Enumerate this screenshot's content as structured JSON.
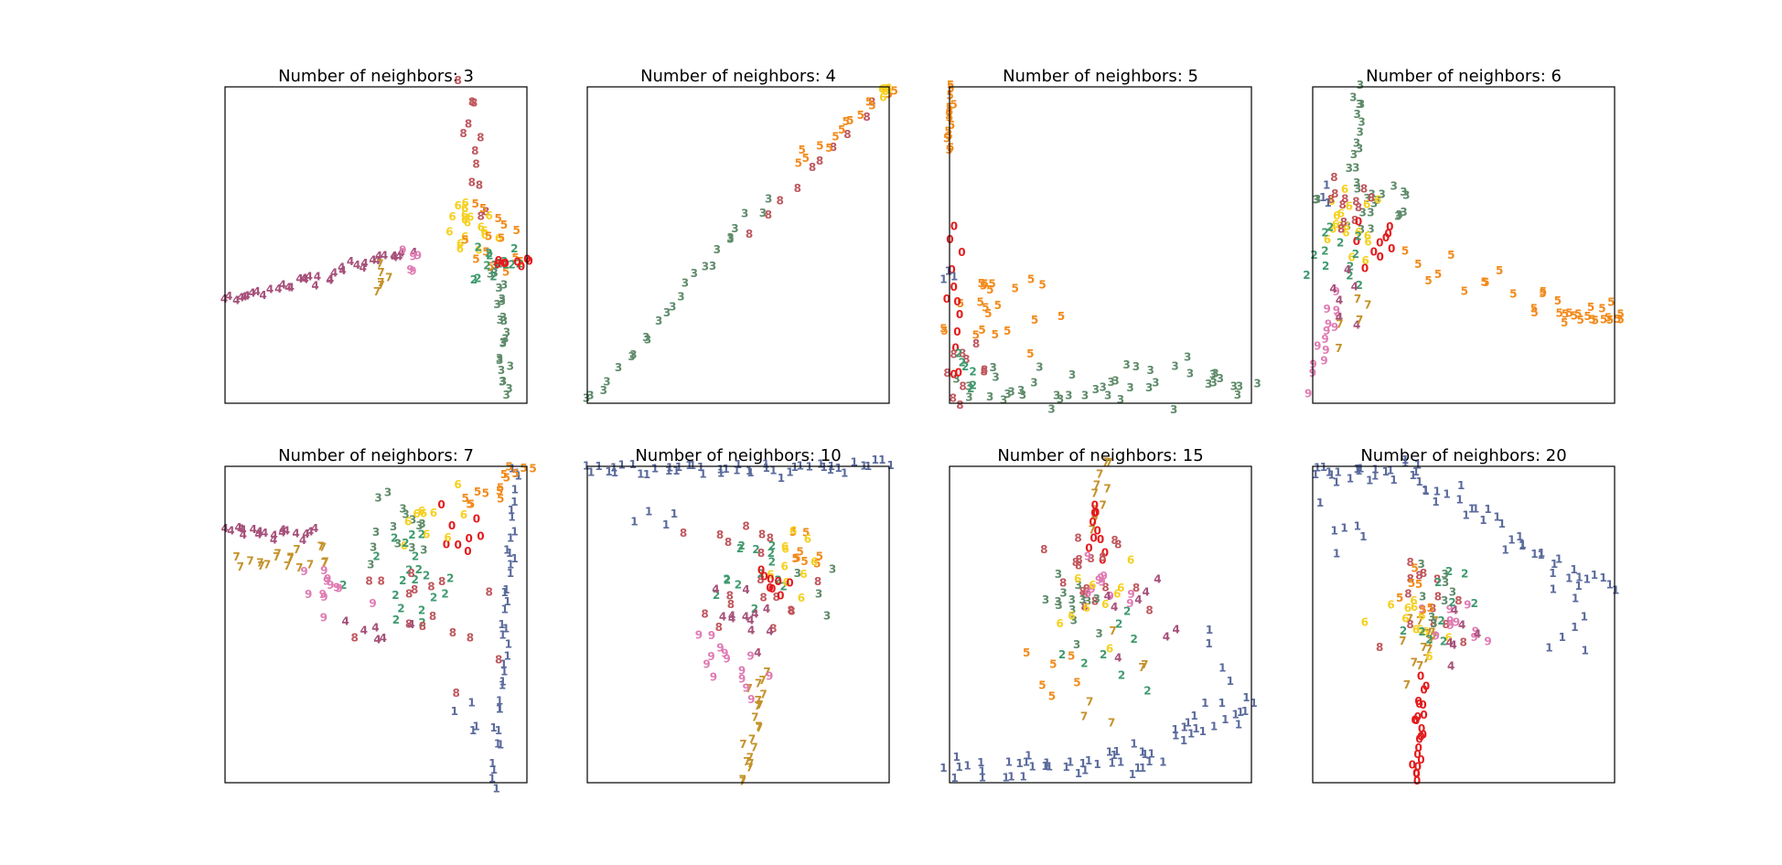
{
  "digit_colors": {
    "0": "#e41a1c",
    "1": "#5a6a9c",
    "2": "#3f9a6e",
    "3": "#5e8b6a",
    "4": "#a6507a",
    "5": "#f28a1a",
    "6": "#f5d020",
    "7": "#c4922a",
    "8": "#c0575d",
    "9": "#e07bb3"
  },
  "chart_data": [
    {
      "type": "scatter",
      "title": "Number of neighbors: 3",
      "marker": "digit-label",
      "xlim": [
        0,
        1
      ],
      "ylim": [
        0,
        1
      ],
      "axis_ticks": false,
      "grid": false,
      "clusters": [
        {
          "label": "4",
          "kind": "line",
          "from": [
            0.0,
            0.32
          ],
          "to": [
            0.62,
            0.48
          ],
          "n": 38,
          "spread": 0.01
        },
        {
          "label": "8",
          "kind": "line",
          "from": [
            0.79,
            1.0
          ],
          "to": [
            0.86,
            0.6
          ],
          "n": 12,
          "spread": 0.015
        },
        {
          "label": "3",
          "kind": "line",
          "from": [
            0.9,
            0.45
          ],
          "to": [
            0.93,
            0.02
          ],
          "n": 24,
          "spread": 0.012
        },
        {
          "label": "6",
          "kind": "blob",
          "center": [
            0.8,
            0.55
          ],
          "n": 18,
          "spread": 0.05
        },
        {
          "label": "5",
          "kind": "blob",
          "center": [
            0.9,
            0.5
          ],
          "n": 14,
          "spread": 0.06
        },
        {
          "label": "2",
          "kind": "blob",
          "center": [
            0.9,
            0.45
          ],
          "n": 14,
          "spread": 0.04
        },
        {
          "label": "0",
          "kind": "line",
          "from": [
            0.9,
            0.44
          ],
          "to": [
            1.0,
            0.44
          ],
          "n": 8,
          "spread": 0.01
        },
        {
          "label": "7",
          "kind": "blob",
          "center": [
            0.5,
            0.42
          ],
          "n": 6,
          "spread": 0.04
        },
        {
          "label": "9",
          "kind": "blob",
          "center": [
            0.6,
            0.45
          ],
          "n": 5,
          "spread": 0.03
        }
      ]
    },
    {
      "type": "scatter",
      "title": "Number of neighbors: 4",
      "marker": "digit-label",
      "xlim": [
        0,
        1
      ],
      "ylim": [
        0,
        1
      ],
      "axis_ticks": false,
      "grid": false,
      "clusters": [
        {
          "label": "3",
          "kind": "line",
          "from": [
            0.0,
            0.0
          ],
          "to": [
            0.6,
            0.65
          ],
          "n": 24,
          "spread": 0.015
        },
        {
          "label": "8",
          "kind": "line",
          "from": [
            0.55,
            0.55
          ],
          "to": [
            0.95,
            0.95
          ],
          "n": 10,
          "spread": 0.012
        },
        {
          "label": "5",
          "kind": "line",
          "from": [
            0.7,
            0.75
          ],
          "to": [
            1.0,
            1.0
          ],
          "n": 14,
          "spread": 0.01
        },
        {
          "label": "6",
          "kind": "blob",
          "center": [
            0.99,
            0.99
          ],
          "n": 6,
          "spread": 0.01
        }
      ]
    },
    {
      "type": "scatter",
      "title": "Number of neighbors: 5",
      "marker": "digit-label",
      "xlim": [
        0,
        1
      ],
      "ylim": [
        0,
        1
      ],
      "axis_ticks": false,
      "grid": false,
      "clusters": [
        {
          "label": "5",
          "kind": "line",
          "from": [
            0.0,
            1.0
          ],
          "to": [
            0.0,
            0.8
          ],
          "n": 14,
          "spread": 0.005
        },
        {
          "label": "5",
          "kind": "blob",
          "center": [
            0.12,
            0.3
          ],
          "n": 22,
          "spread": 0.09
        },
        {
          "label": "3",
          "kind": "line",
          "from": [
            0.05,
            0.05
          ],
          "to": [
            1.0,
            0.07
          ],
          "n": 44,
          "spread": 0.035
        },
        {
          "label": "0",
          "kind": "line",
          "from": [
            0.02,
            0.55
          ],
          "to": [
            0.03,
            0.1
          ],
          "n": 12,
          "spread": 0.02
        },
        {
          "label": "8",
          "kind": "blob",
          "center": [
            0.05,
            0.1
          ],
          "n": 10,
          "spread": 0.04
        },
        {
          "label": "2",
          "kind": "blob",
          "center": [
            0.05,
            0.1
          ],
          "n": 6,
          "spread": 0.03
        },
        {
          "label": "1",
          "kind": "blob",
          "center": [
            0.01,
            0.4
          ],
          "n": 3,
          "spread": 0.03
        }
      ]
    },
    {
      "type": "scatter",
      "title": "Number of neighbors: 6",
      "marker": "digit-label",
      "xlim": [
        0,
        1
      ],
      "ylim": [
        0,
        1
      ],
      "axis_ticks": false,
      "grid": false,
      "clusters": [
        {
          "label": "5",
          "kind": "line",
          "from": [
            0.3,
            0.45
          ],
          "to": [
            1.02,
            0.26
          ],
          "n": 20,
          "spread": 0.025
        },
        {
          "label": "5",
          "kind": "line",
          "from": [
            0.82,
            0.28
          ],
          "to": [
            1.02,
            0.26
          ],
          "n": 14,
          "spread": 0.005
        },
        {
          "label": "3",
          "kind": "line",
          "from": [
            0.15,
            1.0
          ],
          "to": [
            0.15,
            0.75
          ],
          "n": 10,
          "spread": 0.01
        },
        {
          "label": "3",
          "kind": "blob",
          "center": [
            0.2,
            0.65
          ],
          "n": 22,
          "spread": 0.09
        },
        {
          "label": "6",
          "kind": "blob",
          "center": [
            0.12,
            0.55
          ],
          "n": 18,
          "spread": 0.06
        },
        {
          "label": "8",
          "kind": "blob",
          "center": [
            0.1,
            0.6
          ],
          "n": 12,
          "spread": 0.06
        },
        {
          "label": "0",
          "kind": "blob",
          "center": [
            0.22,
            0.5
          ],
          "n": 10,
          "spread": 0.05
        },
        {
          "label": "2",
          "kind": "blob",
          "center": [
            0.08,
            0.45
          ],
          "n": 12,
          "spread": 0.05
        },
        {
          "label": "9",
          "kind": "line",
          "from": [
            0.08,
            0.35
          ],
          "to": [
            0.0,
            0.05
          ],
          "n": 14,
          "spread": 0.02
        },
        {
          "label": "4",
          "kind": "blob",
          "center": [
            0.1,
            0.3
          ],
          "n": 6,
          "spread": 0.05
        },
        {
          "label": "7",
          "kind": "blob",
          "center": [
            0.2,
            0.3
          ],
          "n": 5,
          "spread": 0.05
        },
        {
          "label": "1",
          "kind": "blob",
          "center": [
            0.04,
            0.65
          ],
          "n": 3,
          "spread": 0.03
        }
      ]
    },
    {
      "type": "scatter",
      "title": "Number of neighbors: 7",
      "marker": "digit-label",
      "xlim": [
        0,
        1
      ],
      "ylim": [
        0,
        1
      ],
      "axis_ticks": false,
      "grid": false,
      "clusters": [
        {
          "label": "4",
          "kind": "line",
          "from": [
            0.0,
            0.8
          ],
          "to": [
            0.3,
            0.78
          ],
          "n": 20,
          "spread": 0.012
        },
        {
          "label": "7",
          "kind": "line",
          "from": [
            0.05,
            0.71
          ],
          "to": [
            0.35,
            0.72
          ],
          "n": 18,
          "spread": 0.02
        },
        {
          "label": "1",
          "kind": "line",
          "from": [
            0.97,
            1.0
          ],
          "to": [
            0.89,
            0.0
          ],
          "n": 38,
          "spread": 0.01
        },
        {
          "label": "5",
          "kind": "line",
          "from": [
            0.8,
            0.88
          ],
          "to": [
            1.0,
            0.99
          ],
          "n": 14,
          "spread": 0.015
        },
        {
          "label": "3",
          "kind": "blob",
          "center": [
            0.55,
            0.78
          ],
          "n": 14,
          "spread": 0.08
        },
        {
          "label": "0",
          "kind": "blob",
          "center": [
            0.78,
            0.82
          ],
          "n": 8,
          "spread": 0.04
        },
        {
          "label": "6",
          "kind": "blob",
          "center": [
            0.65,
            0.82
          ],
          "n": 10,
          "spread": 0.06
        },
        {
          "label": "2",
          "kind": "blob",
          "center": [
            0.6,
            0.62
          ],
          "n": 20,
          "spread": 0.1
        },
        {
          "label": "8",
          "kind": "blob",
          "center": [
            0.68,
            0.5
          ],
          "n": 16,
          "spread": 0.12
        },
        {
          "label": "9",
          "kind": "blob",
          "center": [
            0.35,
            0.6
          ],
          "n": 12,
          "spread": 0.08
        },
        {
          "label": "4",
          "kind": "blob",
          "center": [
            0.48,
            0.5
          ],
          "n": 6,
          "spread": 0.08
        },
        {
          "label": "1",
          "kind": "blob",
          "center": [
            0.8,
            0.2
          ],
          "n": 4,
          "spread": 0.04
        }
      ]
    },
    {
      "type": "scatter",
      "title": "Number of neighbors: 10",
      "marker": "digit-label",
      "xlim": [
        0,
        1
      ],
      "ylim": [
        0,
        1
      ],
      "axis_ticks": false,
      "grid": false,
      "clusters": [
        {
          "label": "1",
          "kind": "line",
          "from": [
            0.0,
            0.99
          ],
          "to": [
            1.0,
            1.0
          ],
          "n": 46,
          "spread": 0.012
        },
        {
          "label": "1",
          "kind": "blob",
          "center": [
            0.25,
            0.82
          ],
          "n": 4,
          "spread": 0.05
        },
        {
          "label": "7",
          "kind": "line",
          "from": [
            0.58,
            0.35
          ],
          "to": [
            0.52,
            0.0
          ],
          "n": 20,
          "spread": 0.012
        },
        {
          "label": "9",
          "kind": "line",
          "from": [
            0.4,
            0.48
          ],
          "to": [
            0.55,
            0.3
          ],
          "n": 14,
          "spread": 0.03
        },
        {
          "label": "8",
          "kind": "blob",
          "center": [
            0.58,
            0.68
          ],
          "n": 18,
          "spread": 0.1
        },
        {
          "label": "2",
          "kind": "blob",
          "center": [
            0.52,
            0.65
          ],
          "n": 14,
          "spread": 0.09
        },
        {
          "label": "5",
          "kind": "blob",
          "center": [
            0.7,
            0.75
          ],
          "n": 8,
          "spread": 0.06
        },
        {
          "label": "6",
          "kind": "blob",
          "center": [
            0.65,
            0.68
          ],
          "n": 10,
          "spread": 0.05
        },
        {
          "label": "0",
          "kind": "blob",
          "center": [
            0.6,
            0.62
          ],
          "n": 8,
          "spread": 0.03
        },
        {
          "label": "4",
          "kind": "blob",
          "center": [
            0.5,
            0.52
          ],
          "n": 12,
          "spread": 0.06
        },
        {
          "label": "3",
          "kind": "blob",
          "center": [
            0.72,
            0.62
          ],
          "n": 4,
          "spread": 0.05
        }
      ]
    },
    {
      "type": "scatter",
      "title": "Number of neighbors: 15",
      "marker": "digit-label",
      "xlim": [
        0,
        1
      ],
      "ylim": [
        0,
        1
      ],
      "axis_ticks": false,
      "grid": false,
      "clusters": [
        {
          "label": "1",
          "kind": "line",
          "from": [
            0.0,
            0.04
          ],
          "to": [
            0.55,
            0.06
          ],
          "n": 30,
          "spread": 0.02
        },
        {
          "label": "1",
          "kind": "line",
          "from": [
            0.55,
            0.06
          ],
          "to": [
            1.0,
            0.25
          ],
          "n": 30,
          "spread": 0.03
        },
        {
          "label": "1",
          "kind": "line",
          "from": [
            0.85,
            0.5
          ],
          "to": [
            0.92,
            0.3
          ],
          "n": 4,
          "spread": 0.02
        },
        {
          "label": "7",
          "kind": "line",
          "from": [
            0.52,
            1.0
          ],
          "to": [
            0.48,
            0.82
          ],
          "n": 10,
          "spread": 0.015
        },
        {
          "label": "0",
          "kind": "line",
          "from": [
            0.48,
            0.88
          ],
          "to": [
            0.5,
            0.7
          ],
          "n": 10,
          "spread": 0.015
        },
        {
          "label": "8",
          "kind": "blob",
          "center": [
            0.48,
            0.62
          ],
          "n": 18,
          "spread": 0.08
        },
        {
          "label": "3",
          "kind": "blob",
          "center": [
            0.42,
            0.55
          ],
          "n": 14,
          "spread": 0.07
        },
        {
          "label": "9",
          "kind": "blob",
          "center": [
            0.52,
            0.65
          ],
          "n": 10,
          "spread": 0.06
        },
        {
          "label": "6",
          "kind": "blob",
          "center": [
            0.5,
            0.58
          ],
          "n": 10,
          "spread": 0.06
        },
        {
          "label": "4",
          "kind": "blob",
          "center": [
            0.6,
            0.55
          ],
          "n": 8,
          "spread": 0.07
        },
        {
          "label": "2",
          "kind": "blob",
          "center": [
            0.55,
            0.4
          ],
          "n": 8,
          "spread": 0.1
        },
        {
          "label": "5",
          "kind": "blob",
          "center": [
            0.35,
            0.35
          ],
          "n": 6,
          "spread": 0.05
        },
        {
          "label": "7",
          "kind": "blob",
          "center": [
            0.6,
            0.4
          ],
          "n": 6,
          "spread": 0.1
        }
      ]
    },
    {
      "type": "scatter",
      "title": "Number of neighbors: 20",
      "marker": "digit-label",
      "xlim": [
        0,
        1
      ],
      "ylim": [
        0,
        1
      ],
      "axis_ticks": false,
      "grid": false,
      "clusters": [
        {
          "label": "1",
          "kind": "line",
          "from": [
            0.0,
            0.97
          ],
          "to": [
            0.35,
            0.99
          ],
          "n": 22,
          "spread": 0.015
        },
        {
          "label": "1",
          "kind": "line",
          "from": [
            0.35,
            0.95
          ],
          "to": [
            0.9,
            0.65
          ],
          "n": 30,
          "spread": 0.025
        },
        {
          "label": "1",
          "kind": "line",
          "from": [
            0.9,
            0.65
          ],
          "to": [
            1.0,
            0.62
          ],
          "n": 6,
          "spread": 0.01
        },
        {
          "label": "1",
          "kind": "blob",
          "center": [
            0.12,
            0.75
          ],
          "n": 6,
          "spread": 0.06
        },
        {
          "label": "1",
          "kind": "blob",
          "center": [
            0.78,
            0.5
          ],
          "n": 6,
          "spread": 0.07
        },
        {
          "label": "0",
          "kind": "line",
          "from": [
            0.36,
            0.32
          ],
          "to": [
            0.35,
            0.0
          ],
          "n": 22,
          "spread": 0.01
        },
        {
          "label": "7",
          "kind": "blob",
          "center": [
            0.38,
            0.45
          ],
          "n": 14,
          "spread": 0.05
        },
        {
          "label": "8",
          "kind": "blob",
          "center": [
            0.42,
            0.55
          ],
          "n": 14,
          "spread": 0.07
        },
        {
          "label": "6",
          "kind": "blob",
          "center": [
            0.36,
            0.5
          ],
          "n": 12,
          "spread": 0.05
        },
        {
          "label": "9",
          "kind": "blob",
          "center": [
            0.45,
            0.5
          ],
          "n": 10,
          "spread": 0.05
        },
        {
          "label": "2",
          "kind": "blob",
          "center": [
            0.45,
            0.6
          ],
          "n": 10,
          "spread": 0.07
        },
        {
          "label": "3",
          "kind": "blob",
          "center": [
            0.38,
            0.58
          ],
          "n": 8,
          "spread": 0.05
        },
        {
          "label": "4",
          "kind": "blob",
          "center": [
            0.5,
            0.45
          ],
          "n": 6,
          "spread": 0.05
        },
        {
          "label": "5",
          "kind": "blob",
          "center": [
            0.35,
            0.6
          ],
          "n": 6,
          "spread": 0.05
        }
      ]
    }
  ]
}
